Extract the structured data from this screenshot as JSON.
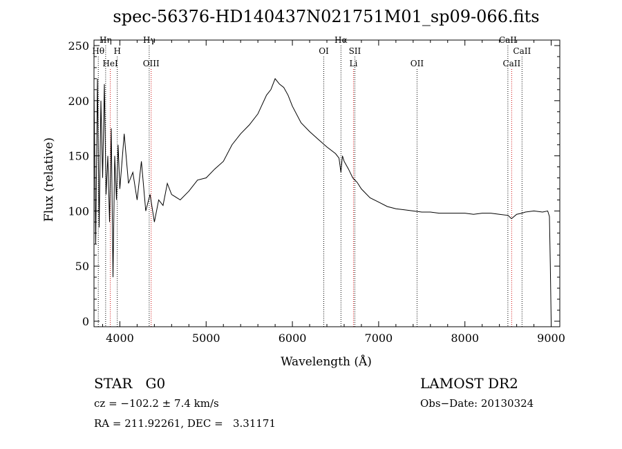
{
  "chart_data": {
    "type": "line",
    "title": "spec-56376-HD140437N021751M01_sp09-066.fits",
    "xlabel": "Wavelength (Å)",
    "ylabel": "Flux (relative)",
    "xlim": [
      3700,
      9100
    ],
    "ylim": [
      -5,
      255
    ],
    "x_ticks": [
      4000,
      5000,
      6000,
      7000,
      8000,
      9000
    ],
    "y_ticks": [
      0,
      50,
      100,
      150,
      200,
      250
    ],
    "grid": false,
    "series": [
      {
        "x": [
          3700,
          3720,
          3740,
          3760,
          3780,
          3800,
          3820,
          3840,
          3860,
          3880,
          3900,
          3920,
          3940,
          3960,
          3980,
          4000,
          4050,
          4100,
          4150,
          4200,
          4250,
          4300,
          4350,
          4400,
          4450,
          4500,
          4550,
          4600,
          4700,
          4800,
          4900,
          5000,
          5100,
          5200,
          5300,
          5400,
          5500,
          5600,
          5700,
          5750,
          5800,
          5850,
          5900,
          5950,
          6000,
          6100,
          6200,
          6300,
          6400,
          6500,
          6540,
          6563,
          6580,
          6600,
          6650,
          6700,
          6750,
          6800,
          6900,
          7000,
          7100,
          7200,
          7300,
          7400,
          7500,
          7600,
          7700,
          7800,
          7900,
          8000,
          8100,
          8200,
          8300,
          8400,
          8500,
          8540,
          8600,
          8662,
          8700,
          8800,
          8900,
          8960,
          8980,
          8990,
          9000
        ],
        "y": [
          210,
          70,
          220,
          85,
          200,
          130,
          215,
          115,
          150,
          90,
          175,
          40,
          150,
          110,
          160,
          120,
          170,
          125,
          135,
          110,
          145,
          100,
          115,
          90,
          110,
          105,
          125,
          115,
          110,
          118,
          128,
          130,
          138,
          145,
          160,
          170,
          178,
          188,
          205,
          210,
          220,
          215,
          212,
          205,
          195,
          180,
          172,
          165,
          158,
          152,
          148,
          135,
          150,
          145,
          138,
          130,
          126,
          120,
          112,
          108,
          104,
          102,
          101,
          100,
          99,
          99,
          98,
          98,
          98,
          98,
          97,
          98,
          98,
          97,
          96,
          93,
          97,
          98,
          99,
          100,
          99,
          100,
          95,
          50,
          0
        ]
      }
    ],
    "lines": [
      {
        "wl": 3750,
        "label": "Hθ",
        "row": 1,
        "color": "#000000"
      },
      {
        "wl": 3835,
        "label": "Hη",
        "row": 0,
        "color": "#000000"
      },
      {
        "wl": 3889,
        "label": "HeI",
        "row": 2,
        "color": "#cc0000"
      },
      {
        "wl": 3970,
        "label": "H",
        "row": 1,
        "color": "#000000"
      },
      {
        "wl": 4340,
        "label": "Hγ",
        "row": 0,
        "color": "#000000"
      },
      {
        "wl": 4363,
        "label": "OIII",
        "row": 2,
        "color": "#cc0000"
      },
      {
        "wl": 6364,
        "label": "OI",
        "row": 1,
        "color": "#000000"
      },
      {
        "wl": 6563,
        "label": "Hα",
        "row": 0,
        "color": "#000000"
      },
      {
        "wl": 6708,
        "label": "Li",
        "row": 2,
        "color": "#cc0000"
      },
      {
        "wl": 6724,
        "label": "SII",
        "row": 1,
        "color": "#000000"
      },
      {
        "wl": 7445,
        "label": "OII",
        "row": 2,
        "color": "#000000"
      },
      {
        "wl": 8498,
        "label": "CaII",
        "row": 0,
        "color": "#000000"
      },
      {
        "wl": 8542,
        "label": "CaII",
        "row": 2,
        "color": "#cc0000"
      },
      {
        "wl": 8662,
        "label": "CaII",
        "row": 1,
        "color": "#000000"
      }
    ]
  },
  "info": {
    "class_label": "STAR",
    "subclass": "G0",
    "survey": "LAMOST DR2",
    "redshift": "cz = −102.2 ± 7.4 km/s",
    "obs_date": "Obs−Date: 20130324",
    "coords": "RA = 211.92261, DEC =   3.31171"
  }
}
